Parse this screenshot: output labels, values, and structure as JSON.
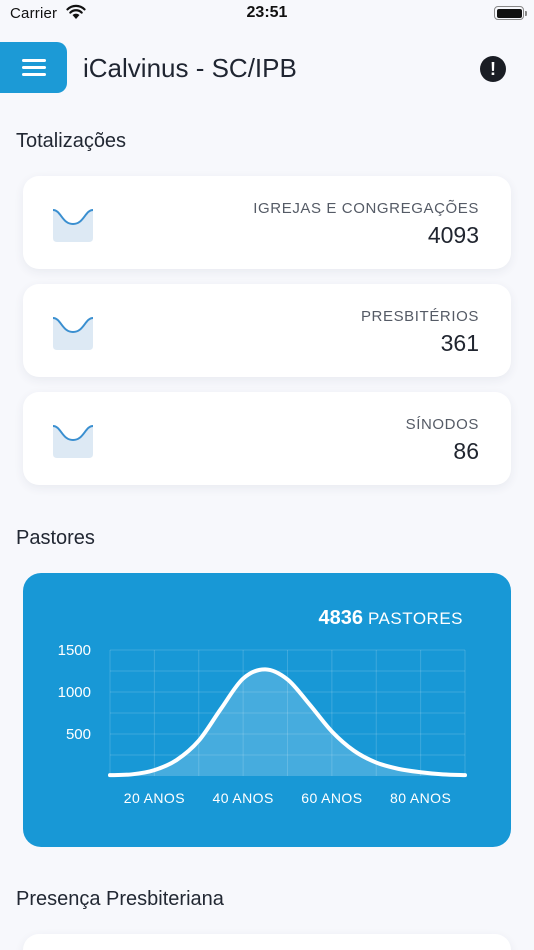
{
  "status_bar": {
    "carrier": "Carrier",
    "time": "23:51"
  },
  "header": {
    "title": "iCalvinus - SC/IPB",
    "alert_glyph": "!"
  },
  "sections": {
    "totals": "Totalizações",
    "pastors": "Pastores",
    "presence": "Presença Presbiteriana"
  },
  "stats": [
    {
      "label": "IGREJAS E CONGREGAÇÕES",
      "value": "4093",
      "icon": "chart-thumbnail-icon"
    },
    {
      "label": "PRESBITÉRIOS",
      "value": "361",
      "icon": "chart-thumbnail-icon"
    },
    {
      "label": "SÍNODOS",
      "value": "86",
      "icon": "chart-thumbnail-icon"
    }
  ],
  "pastors_card": {
    "total": "4836",
    "unit": "PASTORES"
  },
  "colors": {
    "accent": "#1898d6",
    "menu_button": "#1c9ad6",
    "background": "#f7f8fc"
  },
  "chart_data": {
    "type": "area",
    "x_ticks": [
      {
        "value": 20,
        "label": "20 ANOS"
      },
      {
        "value": 40,
        "label": "40 ANOS"
      },
      {
        "value": 60,
        "label": "60 ANOS"
      },
      {
        "value": 80,
        "label": "80 ANOS"
      }
    ],
    "y_ticks": [
      {
        "value": 500,
        "label": "500"
      },
      {
        "value": 1000,
        "label": "1000"
      },
      {
        "value": 1500,
        "label": "1500"
      }
    ],
    "xlim": [
      10,
      90
    ],
    "ylim": [
      0,
      1500
    ],
    "grid": true,
    "series": [
      {
        "x": [
          10,
          15,
          20,
          25,
          30,
          35,
          40,
          45,
          50,
          55,
          60,
          65,
          70,
          75,
          80,
          85,
          90
        ],
        "y": [
          10,
          20,
          70,
          190,
          420,
          800,
          1160,
          1270,
          1150,
          850,
          530,
          300,
          160,
          85,
          45,
          20,
          10
        ]
      }
    ]
  }
}
